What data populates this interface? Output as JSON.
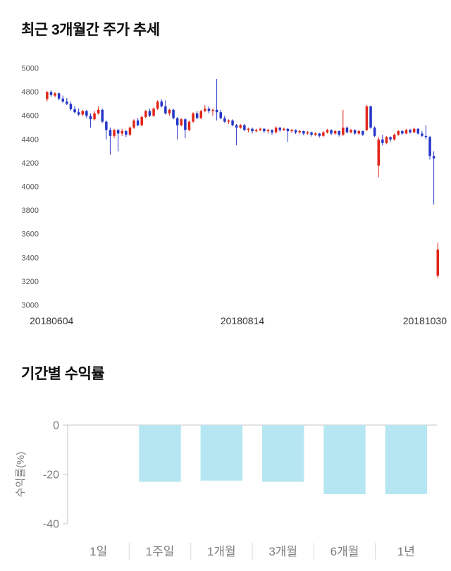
{
  "sections": {
    "price_trend": {
      "title": "최근 3개월간 주가 추세"
    },
    "returns": {
      "title": "기간별 수익률"
    }
  },
  "chart_data": [
    {
      "type": "candlestick",
      "title": "최근 3개월간 주가 추세",
      "ylim": [
        3000,
        5000
      ],
      "yticks": [
        5000,
        4800,
        4600,
        4400,
        4200,
        4000,
        3800,
        3600,
        3400,
        3200,
        3000
      ],
      "xtick_labels": [
        "20180604",
        "20180814",
        "20181030"
      ],
      "grid": false,
      "colors": {
        "up": "#e12619",
        "down": "#2636c9"
      },
      "candles": [
        [
          4740,
          4810,
          4720,
          4800
        ],
        [
          4800,
          4815,
          4760,
          4775
        ],
        [
          4770,
          4800,
          4755,
          4790
        ],
        [
          4790,
          4795,
          4730,
          4745
        ],
        [
          4745,
          4770,
          4710,
          4720
        ],
        [
          4720,
          4750,
          4690,
          4700
        ],
        [
          4700,
          4720,
          4640,
          4655
        ],
        [
          4655,
          4680,
          4620,
          4630
        ],
        [
          4630,
          4660,
          4600,
          4610
        ],
        [
          4610,
          4650,
          4600,
          4640
        ],
        [
          4640,
          4650,
          4580,
          4600
        ],
        [
          4600,
          4620,
          4500,
          4570
        ],
        [
          4570,
          4640,
          4560,
          4620
        ],
        [
          4620,
          4680,
          4610,
          4650
        ],
        [
          4650,
          4660,
          4540,
          4550
        ],
        [
          4550,
          4560,
          4400,
          4480
        ],
        [
          4480,
          4500,
          4270,
          4430
        ],
        [
          4430,
          4490,
          4410,
          4480
        ],
        [
          4480,
          4490,
          4300,
          4450
        ],
        [
          4450,
          4490,
          4430,
          4470
        ],
        [
          4470,
          4480,
          4420,
          4440
        ],
        [
          4440,
          4510,
          4430,
          4500
        ],
        [
          4500,
          4570,
          4490,
          4560
        ],
        [
          4560,
          4580,
          4510,
          4520
        ],
        [
          4520,
          4600,
          4510,
          4590
        ],
        [
          4590,
          4650,
          4580,
          4640
        ],
        [
          4640,
          4660,
          4590,
          4600
        ],
        [
          4600,
          4670,
          4590,
          4660
        ],
        [
          4660,
          4730,
          4650,
          4720
        ],
        [
          4720,
          4740,
          4670,
          4680
        ],
        [
          4680,
          4730,
          4610,
          4620
        ],
        [
          4620,
          4660,
          4600,
          4650
        ],
        [
          4650,
          4660,
          4570,
          4580
        ],
        [
          4580,
          4590,
          4400,
          4520
        ],
        [
          4520,
          4580,
          4510,
          4570
        ],
        [
          4570,
          4580,
          4410,
          4480
        ],
        [
          4480,
          4560,
          4470,
          4550
        ],
        [
          4550,
          4630,
          4540,
          4620
        ],
        [
          4620,
          4640,
          4570,
          4580
        ],
        [
          4580,
          4650,
          4570,
          4640
        ],
        [
          4640,
          4690,
          4630,
          4660
        ],
        [
          4660,
          4680,
          4620,
          4640
        ],
        [
          4640,
          4660,
          4600,
          4650
        ],
        [
          4650,
          4910,
          4560,
          4630
        ],
        [
          4630,
          4650,
          4570,
          4580
        ],
        [
          4580,
          4600,
          4540,
          4550
        ],
        [
          4550,
          4570,
          4530,
          4560
        ],
        [
          4560,
          4570,
          4510,
          4520
        ],
        [
          4520,
          4530,
          4350,
          4500
        ],
        [
          4500,
          4530,
          4490,
          4520
        ],
        [
          4520,
          4530,
          4470,
          4480
        ],
        [
          4480,
          4500,
          4460,
          4490
        ],
        [
          4490,
          4500,
          4450,
          4470
        ],
        [
          4470,
          4490,
          4460,
          4480
        ],
        [
          4480,
          4500,
          4470,
          4490
        ],
        [
          4490,
          4495,
          4455,
          4470
        ],
        [
          4470,
          4490,
          4450,
          4480
        ],
        [
          4480,
          4485,
          4440,
          4460
        ],
        [
          4460,
          4510,
          4450,
          4500
        ],
        [
          4500,
          4505,
          4465,
          4480
        ],
        [
          4480,
          4500,
          4470,
          4490
        ],
        [
          4490,
          4495,
          4380,
          4470
        ],
        [
          4470,
          4490,
          4455,
          4480
        ],
        [
          4480,
          4485,
          4445,
          4460
        ],
        [
          4460,
          4480,
          4450,
          4470
        ],
        [
          4470,
          4475,
          4435,
          4450
        ],
        [
          4450,
          4470,
          4440,
          4460
        ],
        [
          4460,
          4465,
          4425,
          4440
        ],
        [
          4440,
          4460,
          4430,
          4450
        ],
        [
          4450,
          4455,
          4415,
          4430
        ],
        [
          4430,
          4470,
          4420,
          4460
        ],
        [
          4460,
          4490,
          4450,
          4480
        ],
        [
          4480,
          4485,
          4435,
          4450
        ],
        [
          4450,
          4480,
          4440,
          4470
        ],
        [
          4470,
          4475,
          4425,
          4440
        ],
        [
          4440,
          4650,
          4430,
          4500
        ],
        [
          4500,
          4510,
          4450,
          4460
        ],
        [
          4460,
          4490,
          4450,
          4480
        ],
        [
          4480,
          4485,
          4440,
          4450
        ],
        [
          4450,
          4480,
          4440,
          4470
        ],
        [
          4470,
          4475,
          4430,
          4440
        ],
        [
          4480,
          4690,
          4470,
          4680
        ],
        [
          4680,
          4685,
          4490,
          4500
        ],
        [
          4500,
          4510,
          4420,
          4430
        ],
        [
          4180,
          4420,
          4080,
          4400
        ],
        [
          4400,
          4440,
          4350,
          4370
        ],
        [
          4370,
          4430,
          4360,
          4420
        ],
        [
          4420,
          4425,
          4380,
          4400
        ],
        [
          4400,
          4450,
          4390,
          4440
        ],
        [
          4440,
          4480,
          4430,
          4470
        ],
        [
          4470,
          4480,
          4440,
          4450
        ],
        [
          4450,
          4490,
          4445,
          4480
        ],
        [
          4480,
          4490,
          4450,
          4460
        ],
        [
          4460,
          4500,
          4455,
          4490
        ],
        [
          4490,
          4495,
          4440,
          4450
        ],
        [
          4450,
          4470,
          4420,
          4430
        ],
        [
          4430,
          4520,
          4400,
          4420
        ],
        [
          4420,
          4430,
          4230,
          4260
        ],
        [
          4260,
          4300,
          3850,
          4240
        ],
        [
          3250,
          3530,
          3230,
          3470
        ]
      ]
    },
    {
      "type": "bar",
      "title": "기간별 수익률",
      "ylabel": "수익률(%)",
      "ylim": [
        -40,
        0
      ],
      "yticks": [
        0,
        -20,
        -40
      ],
      "categories": [
        "1일",
        "1주일",
        "1개월",
        "3개월",
        "6개월",
        "1년"
      ],
      "values": [
        0,
        -23,
        -22.5,
        -23,
        -28,
        -28
      ],
      "grid": false,
      "legend": "none",
      "colors": {
        "bar": "#b5e6f1",
        "axis": "#c6c6c6",
        "category_tick": "#d9d9d9"
      }
    }
  ]
}
